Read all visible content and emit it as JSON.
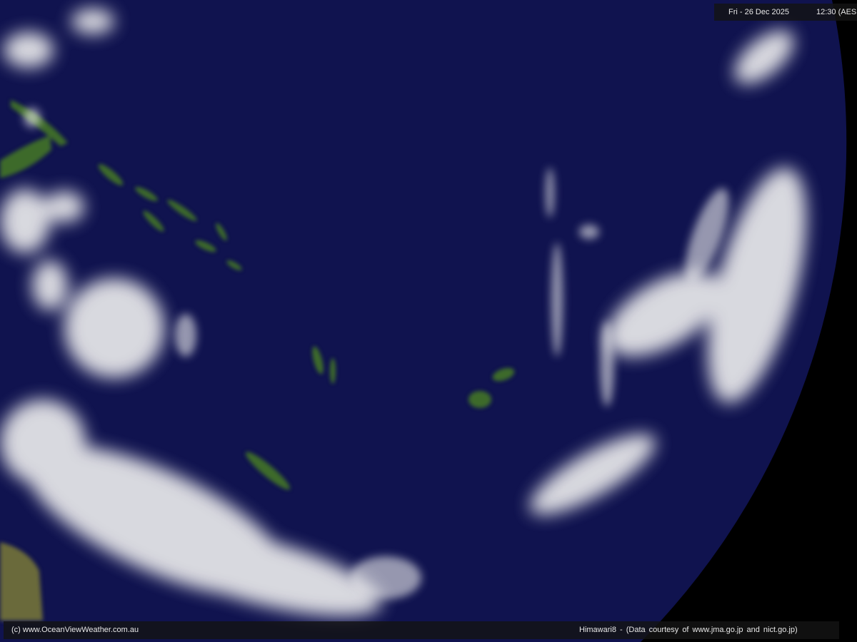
{
  "overlay": {
    "date": "Fri - 26 Dec 2025",
    "time": "12:30 (AES",
    "credit_left": "(c) www.OceanViewWeather.com.au",
    "credit_right": "Himawari8  -  (Data courtesy of    www.jma.go.jp    and    nict.go.jp)"
  },
  "colors": {
    "ocean": "#10134f",
    "space": "#000000",
    "land": "#3c6a2a",
    "cloud": "#f2f2f2"
  }
}
